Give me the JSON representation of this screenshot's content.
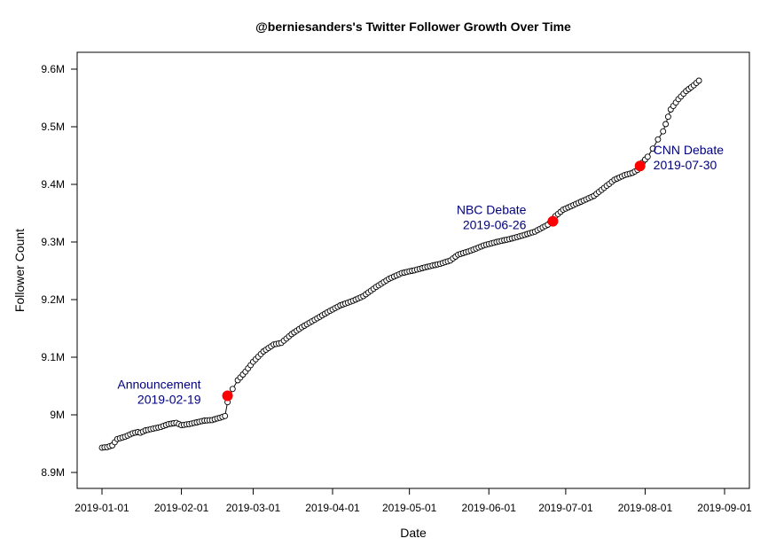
{
  "chart_data": {
    "type": "line",
    "title": "@berniesanders's Twitter Follower Growth Over Time",
    "xlabel": "Date",
    "ylabel": "Follower Count",
    "xlim": [
      "2019-01-01",
      "2019-09-01"
    ],
    "ylim": [
      8.9,
      9.6
    ],
    "x_ticks": [
      "2019-01-01",
      "2019-02-01",
      "2019-03-01",
      "2019-04-01",
      "2019-05-01",
      "2019-06-01",
      "2019-07-01",
      "2019-08-01",
      "2019-09-01"
    ],
    "y_ticks": [
      {
        "value": 8.9,
        "label": "8.9M"
      },
      {
        "value": 9.0,
        "label": "9M"
      },
      {
        "value": 9.1,
        "label": "9.1M"
      },
      {
        "value": 9.2,
        "label": "9.2M"
      },
      {
        "value": 9.3,
        "label": "9.3M"
      },
      {
        "value": 9.4,
        "label": "9.4M"
      },
      {
        "value": 9.5,
        "label": "9.5M"
      },
      {
        "value": 9.6,
        "label": "9.6M"
      }
    ],
    "y_unit": "millions of followers",
    "series": [
      {
        "marker": "open-circle",
        "line_color": "#000000",
        "points": [
          [
            "2019-01-01",
            8.943
          ],
          [
            "2019-01-03",
            8.944
          ],
          [
            "2019-01-05",
            8.947
          ],
          [
            "2019-01-07",
            8.958
          ],
          [
            "2019-01-10",
            8.962
          ],
          [
            "2019-01-13",
            8.968
          ],
          [
            "2019-01-15",
            8.97
          ],
          [
            "2019-01-16",
            8.969
          ],
          [
            "2019-01-18",
            8.973
          ],
          [
            "2019-01-21",
            8.976
          ],
          [
            "2019-01-24",
            8.979
          ],
          [
            "2019-01-27",
            8.984
          ],
          [
            "2019-01-30",
            8.986
          ],
          [
            "2019-02-01",
            8.982
          ],
          [
            "2019-02-04",
            8.984
          ],
          [
            "2019-02-07",
            8.987
          ],
          [
            "2019-02-10",
            8.99
          ],
          [
            "2019-02-13",
            8.991
          ],
          [
            "2019-02-16",
            8.995
          ],
          [
            "2019-02-18",
            8.998
          ],
          [
            "2019-02-19",
            9.022
          ],
          [
            "2019-02-21",
            9.045
          ],
          [
            "2019-02-23",
            9.06
          ],
          [
            "2019-02-26",
            9.075
          ],
          [
            "2019-03-01",
            9.092
          ],
          [
            "2019-03-05",
            9.11
          ],
          [
            "2019-03-09",
            9.122
          ],
          [
            "2019-03-12",
            9.125
          ],
          [
            "2019-03-16",
            9.14
          ],
          [
            "2019-03-20",
            9.152
          ],
          [
            "2019-03-25",
            9.165
          ],
          [
            "2019-03-30",
            9.178
          ],
          [
            "2019-04-04",
            9.19
          ],
          [
            "2019-04-09",
            9.198
          ],
          [
            "2019-04-13",
            9.206
          ],
          [
            "2019-04-18",
            9.222
          ],
          [
            "2019-04-23",
            9.236
          ],
          [
            "2019-04-28",
            9.246
          ],
          [
            "2019-05-03",
            9.251
          ],
          [
            "2019-05-08",
            9.257
          ],
          [
            "2019-05-13",
            9.262
          ],
          [
            "2019-05-17",
            9.268
          ],
          [
            "2019-05-20",
            9.278
          ],
          [
            "2019-05-25",
            9.285
          ],
          [
            "2019-05-30",
            9.294
          ],
          [
            "2019-06-04",
            9.3
          ],
          [
            "2019-06-09",
            9.305
          ],
          [
            "2019-06-14",
            9.311
          ],
          [
            "2019-06-19",
            9.318
          ],
          [
            "2019-06-24",
            9.33
          ],
          [
            "2019-06-27",
            9.345
          ],
          [
            "2019-06-30",
            9.356
          ],
          [
            "2019-07-04",
            9.364
          ],
          [
            "2019-07-08",
            9.372
          ],
          [
            "2019-07-12",
            9.38
          ],
          [
            "2019-07-16",
            9.394
          ],
          [
            "2019-07-20",
            9.408
          ],
          [
            "2019-07-24",
            9.416
          ],
          [
            "2019-07-27",
            9.42
          ],
          [
            "2019-07-29",
            9.425
          ],
          [
            "2019-07-31",
            9.438
          ],
          [
            "2019-08-02",
            9.448
          ],
          [
            "2019-08-04",
            9.462
          ],
          [
            "2019-08-06",
            9.478
          ],
          [
            "2019-08-08",
            9.492
          ],
          [
            "2019-08-11",
            9.53
          ],
          [
            "2019-08-14",
            9.548
          ],
          [
            "2019-08-17",
            9.562
          ],
          [
            "2019-08-20",
            9.572
          ],
          [
            "2019-08-22",
            9.58
          ]
        ]
      }
    ],
    "events": [
      {
        "name": "Announcement",
        "date": "2019-02-19",
        "y": 9.033,
        "color": "#ff0000",
        "label_side": "left"
      },
      {
        "name": "NBC Debate",
        "date": "2019-06-26",
        "y": 9.336,
        "color": "#ff0000",
        "label_side": "left"
      },
      {
        "name": "CNN Debate",
        "date": "2019-07-30",
        "y": 9.432,
        "color": "#ff0000",
        "label_side": "right"
      }
    ],
    "grid": false,
    "legend": "none"
  }
}
